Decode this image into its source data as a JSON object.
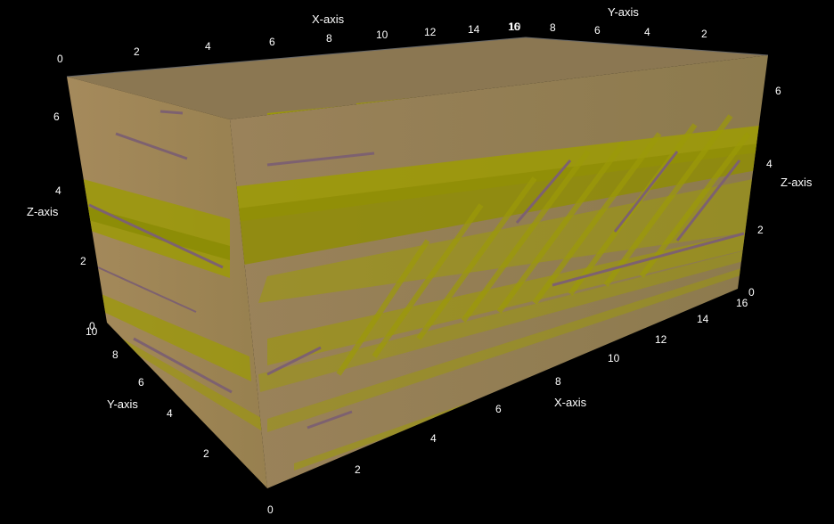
{
  "colors": {
    "background": "#000000",
    "sand_light": "#a58a5c",
    "sand_mid": "#8f7a50",
    "sand_top": "#8b7752",
    "olive": "#9c9a08",
    "mauve": "#7d6170",
    "label": "#ffffff"
  },
  "axes": {
    "top_x": {
      "title": "X-axis",
      "ticks": [
        "0",
        "2",
        "4",
        "6",
        "8",
        "10",
        "12",
        "14",
        "16"
      ]
    },
    "top_y": {
      "title": "Y-axis",
      "ticks": [
        "10",
        "8",
        "6",
        "4",
        "2"
      ]
    },
    "left_z": {
      "title": "Z-axis",
      "ticks": [
        "6",
        "4",
        "2",
        "0"
      ]
    },
    "right_z": {
      "title": "Z-axis",
      "ticks": [
        "6",
        "4",
        "2",
        "0"
      ]
    },
    "bottom_y": {
      "title": "Y-axis",
      "ticks": [
        "10",
        "8",
        "6",
        "4",
        "2",
        "0"
      ]
    },
    "bottom_x": {
      "title": "X-axis",
      "ticks": [
        "2",
        "4",
        "6",
        "8",
        "10",
        "12",
        "14",
        "16"
      ]
    }
  }
}
